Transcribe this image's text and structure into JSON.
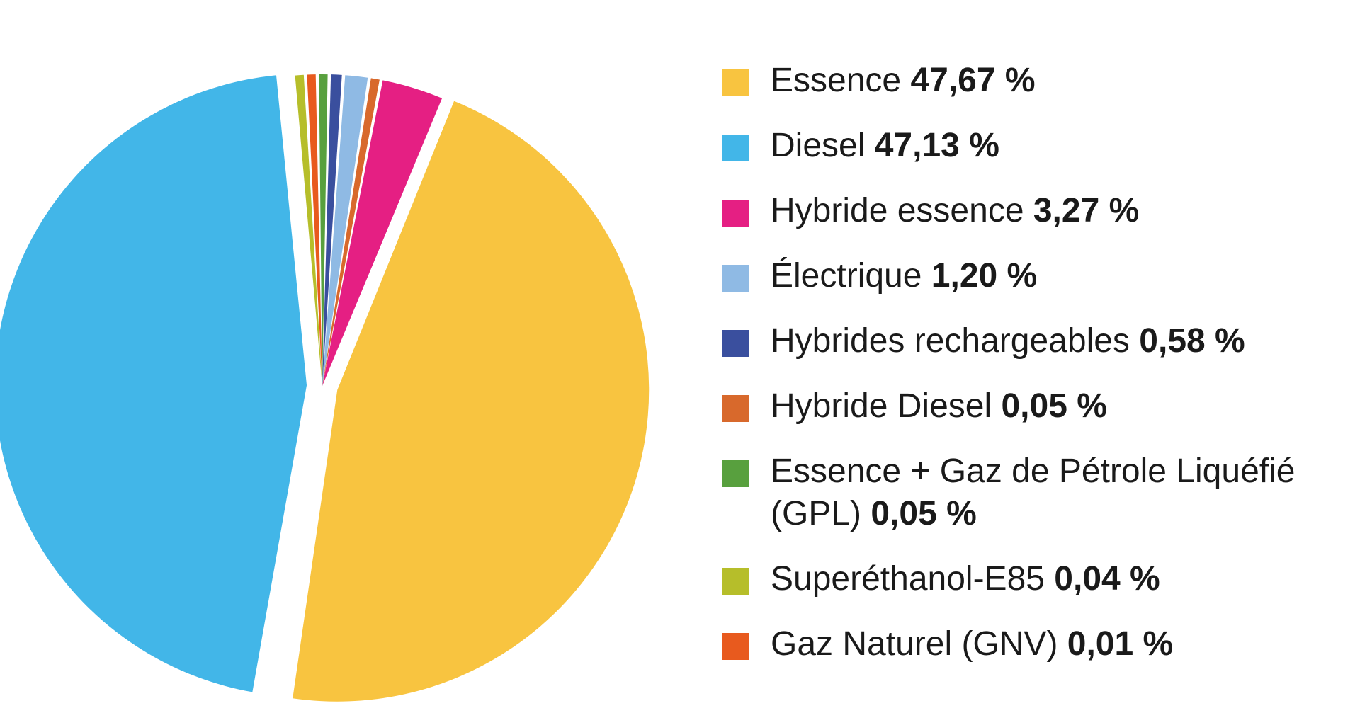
{
  "chart_data": {
    "type": "pie",
    "title": "",
    "slices": [
      {
        "label": "Essence",
        "value_text": "47,67 %",
        "value": 47.67,
        "color": "#F8C440"
      },
      {
        "label": "Diesel",
        "value_text": "47,13 %",
        "value": 47.13,
        "color": "#42B6E8"
      },
      {
        "label": "Hybride essence",
        "value_text": "3,27 %",
        "value": 3.27,
        "color": "#E51F83"
      },
      {
        "label": "Électrique",
        "value_text": "1,20 %",
        "value": 1.2,
        "color": "#8FBAE4"
      },
      {
        "label": "Hybrides rechargeables",
        "value_text": "0,58 %",
        "value": 0.58,
        "color": "#3A4F9E"
      },
      {
        "label": "Hybride Diesel",
        "value_text": "0,05 %",
        "value": 0.05,
        "color": "#D8692C"
      },
      {
        "label": "Essence + Gaz de Pétrole Liquéfié (GPL)",
        "value_text": "0,05 %",
        "value": 0.05,
        "color": "#58A03E"
      },
      {
        "label": "Superéthanol-E85",
        "value_text": "0,04 %",
        "value": 0.04,
        "color": "#B6BE2A"
      },
      {
        "label": "Gaz Naturel (GNV)",
        "value_text": "0,01 %",
        "value": 0.01,
        "color": "#E85A1E"
      }
    ],
    "legend_position": "right"
  }
}
